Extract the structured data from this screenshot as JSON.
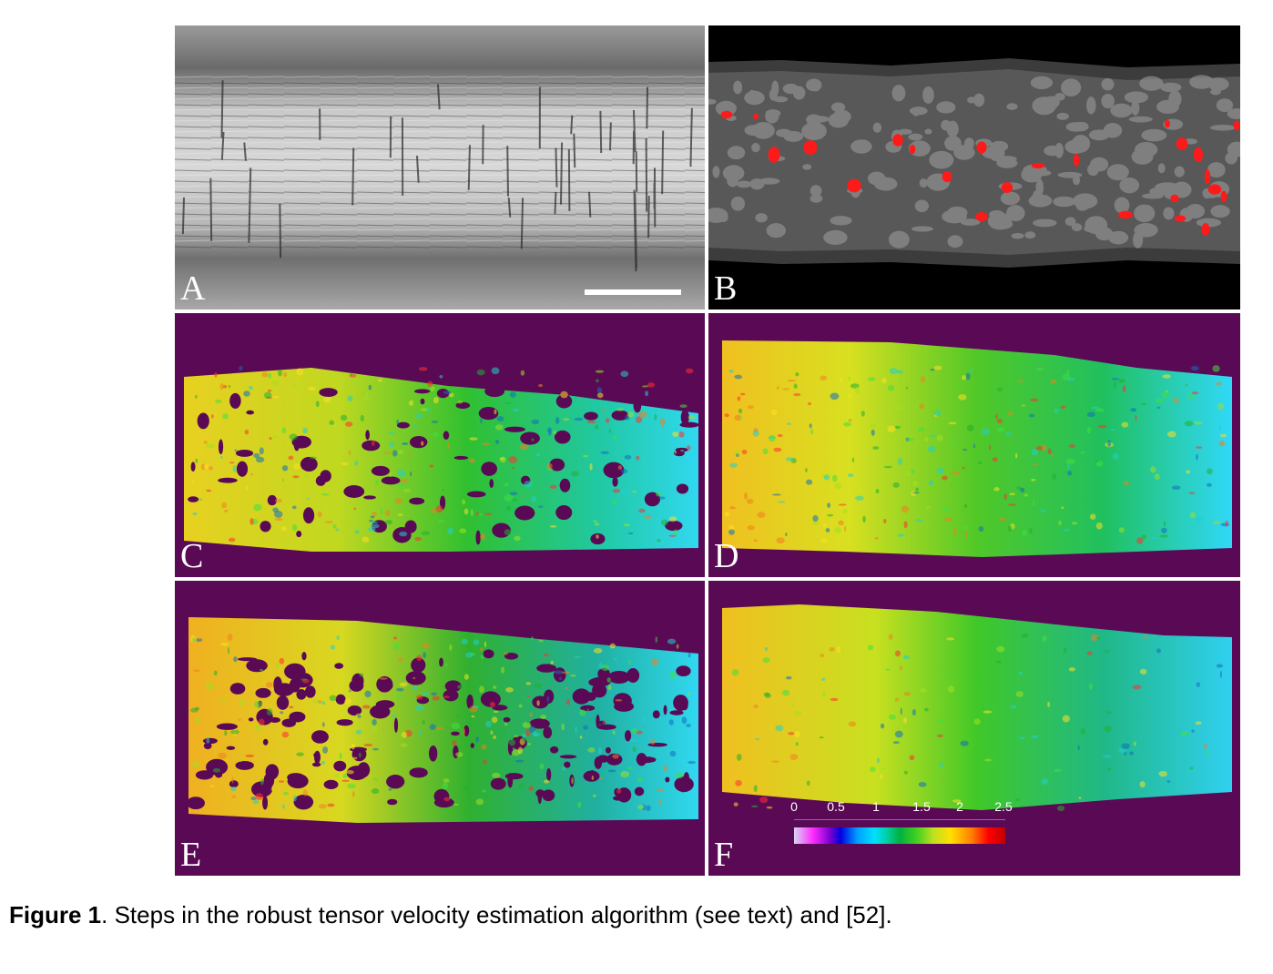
{
  "figure": {
    "panels": [
      {
        "letter": "A",
        "content": "grayscale-microscopy"
      },
      {
        "letter": "B",
        "content": "grayscale-blurred-with-red-spots"
      },
      {
        "letter": "C",
        "content": "velocity-map-sparse"
      },
      {
        "letter": "D",
        "content": "velocity-map-dense"
      },
      {
        "letter": "E",
        "content": "velocity-map-noisy"
      },
      {
        "letter": "F",
        "content": "velocity-map-smooth"
      }
    ],
    "colorbar": {
      "ticks": [
        "0",
        "0.5",
        "1",
        "1.5",
        "2",
        "2.5"
      ]
    },
    "colors": {
      "panel_background": "#5a0a55",
      "spot_red": "#ff1a1a",
      "divider": "#ffffff"
    }
  },
  "caption": {
    "label": "Figure 1",
    "text": ". Steps in the robust tensor velocity estimation algorithm (see text) and [52]."
  }
}
